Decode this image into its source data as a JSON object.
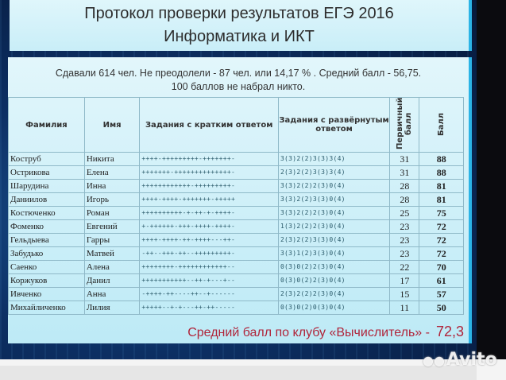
{
  "title": {
    "line1": "Протокол проверки результатов ЕГЭ 2016",
    "line2": "Информатика и ИКТ"
  },
  "summary": {
    "line1": "Сдавали 614 чел. Не преодолели  -  87 чел. или  14,17 % .  Средний балл -  56,75.",
    "line2": "100 баллов не набрал никто."
  },
  "table": {
    "headers": [
      "Фамилия",
      "Имя",
      "Задания с кратким ответом",
      "Задания с развёрнутым ответом",
      "Первичный балл",
      "Балл"
    ],
    "rows": [
      [
        "Коструб",
        "Никита",
        "++++-+++++++++-+++++++-",
        "3(3)2(2)3(3)3(4)",
        "31",
        "88"
      ],
      [
        "Острикова",
        "Елена",
        "+++++++-++++++++++++++-",
        "2(3)2(2)3(3)3(4)",
        "31",
        "88"
      ],
      [
        "Шарудина",
        "Инна",
        "++++++++++++-+++++++++-",
        "3(3)2(2)2(3)0(4)",
        "28",
        "81"
      ],
      [
        "Даниилов",
        "Игорь",
        "++++-++++-+++++++-+++++",
        "3(3)2(2)3(3)0(4)",
        "28",
        "81"
      ],
      [
        "Костюченко",
        "Роман",
        "++++++++++-+-++-+-++++-",
        "3(3)2(2)2(3)0(4)",
        "25",
        "75"
      ],
      [
        "Фоменко",
        "Евгений",
        "+-++++++-+++-++++-++++-",
        "1(3)2(2)2(3)0(4)",
        "23",
        "72"
      ],
      [
        "Гельдыева",
        "Гарры",
        "++++-++++-++-++++---++-",
        "2(3)2(2)3(3)0(4)",
        "23",
        "72"
      ],
      [
        "Забудько",
        "Матвей",
        "-++--+++-++--+++++++++-",
        "3(3)1(2)3(3)0(4)",
        "23",
        "72"
      ],
      [
        "Саенко",
        "Алена",
        "++++++++-++++++++++++--",
        "0(3)0(2)2(3)0(4)",
        "22",
        "70"
      ],
      [
        "Коржуков",
        "Данил",
        "+++++++++++--++-+---+--",
        "0(3)0(2)2(3)0(4)",
        "17",
        "61"
      ],
      [
        "Ивченко",
        "Анна",
        "-++++-++----++--+------",
        "2(3)2(2)2(3)0(4)",
        "15",
        "57"
      ],
      [
        "Михайличенко",
        "Лилия",
        "+++++--+-+---++-++-----",
        "0(3)0(2)0(3)0(4)",
        "11",
        "50"
      ]
    ]
  },
  "club": {
    "label": "Средний балл по клубу «Вычислитель» -",
    "value": "72,3"
  },
  "watermark": "Avito",
  "colors": {
    "accent_red": "#b0243a",
    "panel": "#c9eef8",
    "border": "#2bb4e6"
  }
}
